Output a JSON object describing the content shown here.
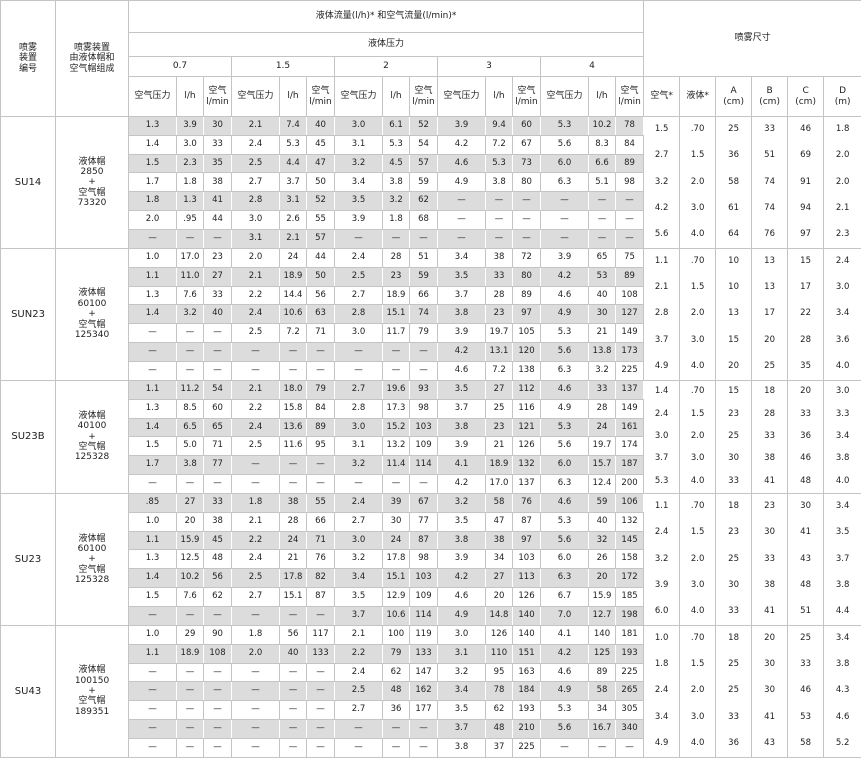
{
  "header": {
    "col_id": [
      "喷雾",
      "装置",
      "编号"
    ],
    "col_assembly": [
      "喷雾装置",
      "由液体帽和",
      "空气帽组成"
    ],
    "flow_title": "液体流量(l/h)* 和空气流量(l/min)*",
    "liquid_pressure": "液体压力",
    "pressures": [
      "0.7",
      "1.5",
      "2",
      "3",
      "4"
    ],
    "sub_columns": [
      [
        "空气压力"
      ],
      [
        "l/h"
      ],
      [
        "空气",
        "l/min"
      ]
    ],
    "spray_title": "喷雾尺寸",
    "spray_columns": [
      [
        "空气*"
      ],
      [
        "液体*"
      ],
      [
        "A",
        "(cm)"
      ],
      [
        "B",
        "(cm)"
      ],
      [
        "C",
        "(cm)"
      ],
      [
        "D",
        "(m)"
      ]
    ]
  },
  "groups": [
    {
      "id": "SU14",
      "assembly": [
        "液体帽",
        "2850",
        "+",
        "空气帽",
        "73320"
      ],
      "rows": [
        [
          "1.3",
          "3.9",
          "30",
          "2.1",
          "7.4",
          "40",
          "3.0",
          "6.1",
          "52",
          "3.9",
          "9.4",
          "60",
          "5.3",
          "10.2",
          "78"
        ],
        [
          "1.4",
          "3.0",
          "33",
          "2.4",
          "5.3",
          "45",
          "3.1",
          "5.3",
          "54",
          "4.2",
          "7.2",
          "67",
          "5.6",
          "8.3",
          "84"
        ],
        [
          "1.5",
          "2.3",
          "35",
          "2.5",
          "4.4",
          "47",
          "3.2",
          "4.5",
          "57",
          "4.6",
          "5.3",
          "73",
          "6.0",
          "6.6",
          "89"
        ],
        [
          "1.7",
          "1.8",
          "38",
          "2.7",
          "3.7",
          "50",
          "3.4",
          "3.8",
          "59",
          "4.9",
          "3.8",
          "80",
          "6.3",
          "5.1",
          "98"
        ],
        [
          "1.8",
          "1.3",
          "41",
          "2.8",
          "3.1",
          "52",
          "3.5",
          "3.2",
          "62",
          "—",
          "—",
          "—",
          "—",
          "—",
          "—"
        ],
        [
          "2.0",
          ".95",
          "44",
          "3.0",
          "2.6",
          "55",
          "3.9",
          "1.8",
          "68",
          "—",
          "—",
          "—",
          "—",
          "—",
          "—"
        ],
        [
          "—",
          "—",
          "—",
          "3.1",
          "2.1",
          "57",
          "—",
          "—",
          "—",
          "—",
          "—",
          "—",
          "—",
          "—",
          "—"
        ]
      ],
      "dims": [
        [
          "1.5",
          ".70",
          "25",
          "33",
          "46",
          "1.8"
        ],
        [
          "2.7",
          "1.5",
          "36",
          "51",
          "69",
          "2.0"
        ],
        [
          "3.2",
          "2.0",
          "58",
          "74",
          "91",
          "2.0"
        ],
        [
          "4.2",
          "3.0",
          "61",
          "74",
          "94",
          "2.1"
        ],
        [
          "5.6",
          "4.0",
          "64",
          "76",
          "97",
          "2.3"
        ]
      ]
    },
    {
      "id": "SUN23",
      "assembly": [
        "液体帽",
        "60100",
        "+",
        "空气帽",
        "125340"
      ],
      "rows": [
        [
          "1.0",
          "17.0",
          "23",
          "2.0",
          "24",
          "44",
          "2.4",
          "28",
          "51",
          "3.4",
          "38",
          "72",
          "3.9",
          "65",
          "75"
        ],
        [
          "1.1",
          "11.0",
          "27",
          "2.1",
          "18.9",
          "50",
          "2.5",
          "23",
          "59",
          "3.5",
          "33",
          "80",
          "4.2",
          "53",
          "89"
        ],
        [
          "1.3",
          "7.6",
          "33",
          "2.2",
          "14.4",
          "56",
          "2.7",
          "18.9",
          "66",
          "3.7",
          "28",
          "89",
          "4.6",
          "40",
          "108"
        ],
        [
          "1.4",
          "3.2",
          "40",
          "2.4",
          "10.6",
          "63",
          "2.8",
          "15.1",
          "74",
          "3.8",
          "23",
          "97",
          "4.9",
          "30",
          "127"
        ],
        [
          "—",
          "—",
          "—",
          "2.5",
          "7.2",
          "71",
          "3.0",
          "11.7",
          "79",
          "3.9",
          "19.7",
          "105",
          "5.3",
          "21",
          "149"
        ],
        [
          "—",
          "—",
          "—",
          "—",
          "—",
          "—",
          "—",
          "—",
          "—",
          "4.2",
          "13.1",
          "120",
          "5.6",
          "13.8",
          "173"
        ],
        [
          "—",
          "—",
          "—",
          "—",
          "—",
          "—",
          "—",
          "—",
          "—",
          "4.6",
          "7.2",
          "138",
          "6.3",
          "3.2",
          "225"
        ]
      ],
      "dims": [
        [
          "1.1",
          ".70",
          "10",
          "13",
          "15",
          "2.4"
        ],
        [
          "2.1",
          "1.5",
          "10",
          "13",
          "17",
          "3.0"
        ],
        [
          "2.8",
          "2.0",
          "13",
          "17",
          "22",
          "3.4"
        ],
        [
          "3.7",
          "3.0",
          "15",
          "20",
          "28",
          "3.6"
        ],
        [
          "4.9",
          "4.0",
          "20",
          "25",
          "35",
          "4.0"
        ]
      ]
    },
    {
      "id": "SU23B",
      "assembly": [
        "液体帽",
        "40100",
        "+",
        "空气帽",
        "125328"
      ],
      "rows": [
        [
          "1.1",
          "11.2",
          "54",
          "2.1",
          "18.0",
          "79",
          "2.7",
          "19.6",
          "93",
          "3.5",
          "27",
          "112",
          "4.6",
          "33",
          "137"
        ],
        [
          "1.3",
          "8.5",
          "60",
          "2.2",
          "15.8",
          "84",
          "2.8",
          "17.3",
          "98",
          "3.7",
          "25",
          "116",
          "4.9",
          "28",
          "149"
        ],
        [
          "1.4",
          "6.5",
          "65",
          "2.4",
          "13.6",
          "89",
          "3.0",
          "15.2",
          "103",
          "3.8",
          "23",
          "121",
          "5.3",
          "24",
          "161"
        ],
        [
          "1.5",
          "5.0",
          "71",
          "2.5",
          "11.6",
          "95",
          "3.1",
          "13.2",
          "109",
          "3.9",
          "21",
          "126",
          "5.6",
          "19.7",
          "174"
        ],
        [
          "1.7",
          "3.8",
          "77",
          "—",
          "—",
          "—",
          "3.2",
          "11.4",
          "114",
          "4.1",
          "18.9",
          "132",
          "6.0",
          "15.7",
          "187"
        ],
        [
          "—",
          "—",
          "—",
          "—",
          "—",
          "—",
          "—",
          "—",
          "—",
          "4.2",
          "17.0",
          "137",
          "6.3",
          "12.4",
          "200"
        ]
      ],
      "dims": [
        [
          "1.4",
          ".70",
          "15",
          "18",
          "20",
          "3.0"
        ],
        [
          "2.4",
          "1.5",
          "23",
          "28",
          "33",
          "3.3"
        ],
        [
          "3.0",
          "2.0",
          "25",
          "33",
          "36",
          "3.4"
        ],
        [
          "3.7",
          "3.0",
          "30",
          "38",
          "46",
          "3.8"
        ],
        [
          "5.3",
          "4.0",
          "33",
          "41",
          "48",
          "4.0"
        ]
      ]
    },
    {
      "id": "SU23",
      "assembly": [
        "液体帽",
        "60100",
        "+",
        "空气帽",
        "125328"
      ],
      "rows": [
        [
          ".85",
          "27",
          "33",
          "1.8",
          "38",
          "55",
          "2.4",
          "39",
          "67",
          "3.2",
          "58",
          "76",
          "4.6",
          "59",
          "106"
        ],
        [
          "1.0",
          "20",
          "38",
          "2.1",
          "28",
          "66",
          "2.7",
          "30",
          "77",
          "3.5",
          "47",
          "87",
          "5.3",
          "40",
          "132"
        ],
        [
          "1.1",
          "15.9",
          "45",
          "2.2",
          "24",
          "71",
          "3.0",
          "24",
          "87",
          "3.8",
          "38",
          "97",
          "5.6",
          "32",
          "145"
        ],
        [
          "1.3",
          "12.5",
          "48",
          "2.4",
          "21",
          "76",
          "3.2",
          "17.8",
          "98",
          "3.9",
          "34",
          "103",
          "6.0",
          "26",
          "158"
        ],
        [
          "1.4",
          "10.2",
          "56",
          "2.5",
          "17.8",
          "82",
          "3.4",
          "15.1",
          "103",
          "4.2",
          "27",
          "113",
          "6.3",
          "20",
          "172"
        ],
        [
          "1.5",
          "7.6",
          "62",
          "2.7",
          "15.1",
          "87",
          "3.5",
          "12.9",
          "109",
          "4.6",
          "20",
          "126",
          "6.7",
          "15.9",
          "185"
        ],
        [
          "—",
          "—",
          "—",
          "—",
          "—",
          "—",
          "3.7",
          "10.6",
          "114",
          "4.9",
          "14.8",
          "140",
          "7.0",
          "12.7",
          "198"
        ]
      ],
      "dims": [
        [
          "1.1",
          ".70",
          "18",
          "23",
          "30",
          "3.4"
        ],
        [
          "2.4",
          "1.5",
          "23",
          "30",
          "41",
          "3.5"
        ],
        [
          "3.2",
          "2.0",
          "25",
          "33",
          "43",
          "3.7"
        ],
        [
          "3.9",
          "3.0",
          "30",
          "38",
          "48",
          "3.8"
        ],
        [
          "6.0",
          "4.0",
          "33",
          "41",
          "51",
          "4.4"
        ]
      ]
    },
    {
      "id": "SU43",
      "assembly": [
        "液体帽",
        "100150",
        "+",
        "空气帽",
        "189351"
      ],
      "rows": [
        [
          "1.0",
          "29",
          "90",
          "1.8",
          "56",
          "117",
          "2.1",
          "100",
          "119",
          "3.0",
          "126",
          "140",
          "4.1",
          "140",
          "181"
        ],
        [
          "1.1",
          "18.9",
          "108",
          "2.0",
          "40",
          "133",
          "2.2",
          "79",
          "133",
          "3.1",
          "110",
          "151",
          "4.2",
          "125",
          "193"
        ],
        [
          "—",
          "—",
          "—",
          "—",
          "—",
          "—",
          "2.4",
          "62",
          "147",
          "3.2",
          "95",
          "163",
          "4.6",
          "89",
          "225"
        ],
        [
          "—",
          "—",
          "—",
          "—",
          "—",
          "—",
          "2.5",
          "48",
          "162",
          "3.4",
          "78",
          "184",
          "4.9",
          "58",
          "265"
        ],
        [
          "—",
          "—",
          "—",
          "—",
          "—",
          "—",
          "2.7",
          "36",
          "177",
          "3.5",
          "62",
          "193",
          "5.3",
          "34",
          "305"
        ],
        [
          "—",
          "—",
          "—",
          "—",
          "—",
          "—",
          "—",
          "—",
          "—",
          "3.7",
          "48",
          "210",
          "5.6",
          "16.7",
          "340"
        ],
        [
          "—",
          "—",
          "—",
          "—",
          "—",
          "—",
          "—",
          "—",
          "—",
          "3.8",
          "37",
          "225",
          "—",
          "—",
          "—"
        ]
      ],
      "dims": [
        [
          "1.0",
          ".70",
          "18",
          "20",
          "25",
          "3.4"
        ],
        [
          "1.8",
          "1.5",
          "25",
          "30",
          "33",
          "3.8"
        ],
        [
          "2.4",
          "2.0",
          "25",
          "30",
          "46",
          "4.3"
        ],
        [
          "3.4",
          "3.0",
          "33",
          "41",
          "53",
          "4.6"
        ],
        [
          "4.9",
          "4.0",
          "36",
          "43",
          "58",
          "5.2"
        ]
      ]
    }
  ]
}
